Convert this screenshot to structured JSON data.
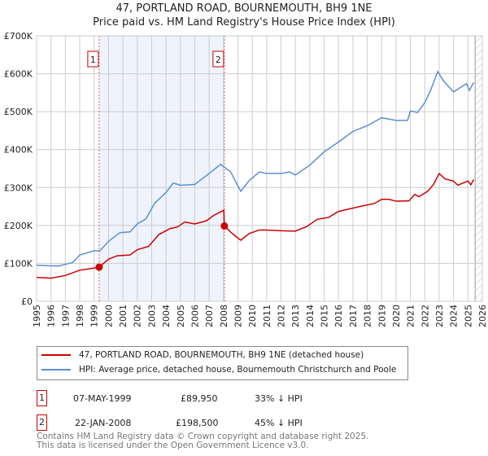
{
  "chart_data": {
    "type": "line",
    "title": "47, PORTLAND ROAD, BOURNEMOUTH, BH9 1NE",
    "subtitle": "Price paid vs. HM Land Registry's House Price Index (HPI)",
    "xlim": [
      1995,
      2026
    ],
    "ylim": [
      0,
      700000
    ],
    "yticks": [
      {
        "v": 0,
        "label": "£0"
      },
      {
        "v": 100000,
        "label": "£100K"
      },
      {
        "v": 200000,
        "label": "£200K"
      },
      {
        "v": 300000,
        "label": "£300K"
      },
      {
        "v": 400000,
        "label": "£400K"
      },
      {
        "v": 500000,
        "label": "£500K"
      },
      {
        "v": 600000,
        "label": "£600K"
      },
      {
        "v": 700000,
        "label": "£700K"
      }
    ],
    "xticks": [
      "1995",
      "1996",
      "1997",
      "1998",
      "1999",
      "2000",
      "2001",
      "2002",
      "2003",
      "2004",
      "2005",
      "2006",
      "2007",
      "2008",
      "2009",
      "2010",
      "2011",
      "2012",
      "2013",
      "2014",
      "2015",
      "2016",
      "2017",
      "2018",
      "2019",
      "2020",
      "2021",
      "2022",
      "2023",
      "2024",
      "2025",
      "2026"
    ],
    "grid": true,
    "shaded_range": [
      1999.35,
      2008.06
    ],
    "forecast_hatch_from": 2025.5,
    "series": [
      {
        "name": "47, PORTLAND ROAD, BOURNEMOUTH, BH9 1NE (detached house)",
        "color": "#cc0000",
        "points": [
          [
            1995,
            63
          ],
          [
            1996,
            61
          ],
          [
            1997,
            68
          ],
          [
            1998,
            82
          ],
          [
            1999,
            87.5
          ],
          [
            1999.35,
            89.95
          ],
          [
            2000,
            111
          ],
          [
            2000.6,
            120
          ],
          [
            2001.5,
            122
          ],
          [
            2002,
            136
          ],
          [
            2002.8,
            145
          ],
          [
            2003.5,
            176
          ],
          [
            2004.3,
            192
          ],
          [
            2004.8,
            196
          ],
          [
            2005.3,
            209
          ],
          [
            2006,
            204
          ],
          [
            2006.8,
            212
          ],
          [
            2007.3,
            226
          ],
          [
            2008.02,
            240
          ],
          [
            2008.06,
            198.5
          ],
          [
            2008.6,
            179
          ],
          [
            2009.2,
            161
          ],
          [
            2009.8,
            179
          ],
          [
            2010.5,
            188
          ],
          [
            2011,
            188
          ],
          [
            2012,
            186
          ],
          [
            2013,
            185
          ],
          [
            2013.8,
            197
          ],
          [
            2014.5,
            216
          ],
          [
            2015.3,
            221
          ],
          [
            2016,
            237
          ],
          [
            2016.8,
            244
          ],
          [
            2017.6,
            251
          ],
          [
            2018.5,
            258
          ],
          [
            2019,
            269
          ],
          [
            2019.5,
            269
          ],
          [
            2020,
            264
          ],
          [
            2020.9,
            265
          ],
          [
            2021.3,
            282
          ],
          [
            2021.6,
            276
          ],
          [
            2022.2,
            290
          ],
          [
            2022.6,
            308
          ],
          [
            2023,
            337
          ],
          [
            2023.4,
            323
          ],
          [
            2024,
            317
          ],
          [
            2024.3,
            306
          ],
          [
            2024.6,
            311
          ],
          [
            2025,
            317
          ],
          [
            2025.2,
            307
          ],
          [
            2025.4,
            321
          ]
        ]
      },
      {
        "name": "HPI: Average price, detached house, Bournemouth Christchurch and Poole",
        "color": "#5b8fd4",
        "points": [
          [
            1995,
            95
          ],
          [
            1996.5,
            93
          ],
          [
            1997.5,
            102
          ],
          [
            1998,
            122
          ],
          [
            1999,
            133
          ],
          [
            1999.4,
            133
          ],
          [
            2000,
            158
          ],
          [
            2000.8,
            181
          ],
          [
            2001.5,
            183
          ],
          [
            2002,
            204
          ],
          [
            2002.6,
            217
          ],
          [
            2003.2,
            258
          ],
          [
            2004,
            287
          ],
          [
            2004.5,
            312
          ],
          [
            2005,
            306
          ],
          [
            2006,
            308
          ],
          [
            2007,
            337
          ],
          [
            2007.8,
            361
          ],
          [
            2008.5,
            341
          ],
          [
            2009.2,
            290
          ],
          [
            2009.8,
            319
          ],
          [
            2010.5,
            341
          ],
          [
            2011,
            337
          ],
          [
            2012,
            337
          ],
          [
            2012.6,
            341
          ],
          [
            2013,
            333
          ],
          [
            2014,
            359
          ],
          [
            2015,
            394
          ],
          [
            2016,
            420
          ],
          [
            2017,
            448
          ],
          [
            2018,
            463
          ],
          [
            2019,
            484
          ],
          [
            2020,
            477
          ],
          [
            2020.8,
            477
          ],
          [
            2021,
            502
          ],
          [
            2021.5,
            498
          ],
          [
            2022,
            524
          ],
          [
            2022.4,
            556
          ],
          [
            2022.9,
            606
          ],
          [
            2023.3,
            581
          ],
          [
            2024,
            552
          ],
          [
            2024.4,
            562
          ],
          [
            2024.9,
            574
          ],
          [
            2025.1,
            556
          ],
          [
            2025.4,
            577
          ]
        ]
      }
    ],
    "sales": [
      {
        "label": "1",
        "x": 1999.35,
        "y": 89950
      },
      {
        "label": "2",
        "x": 2008.06,
        "y": 198500
      }
    ]
  },
  "legend": {
    "property": "47, PORTLAND ROAD, BOURNEMOUTH, BH9 1NE (detached house)",
    "hpi": "HPI: Average price, detached house, Bournemouth Christchurch and Poole"
  },
  "sales_table": [
    {
      "num": "1",
      "date": "07-MAY-1999",
      "price": "£89,950",
      "hpi": "33% ↓ HPI"
    },
    {
      "num": "2",
      "date": "22-JAN-2008",
      "price": "£198,500",
      "hpi": "45% ↓ HPI"
    }
  ],
  "footer": {
    "line1": "Contains HM Land Registry data © Crown copyright and database right 2025.",
    "line2": "This data is licensed under the Open Government Licence v3.0."
  }
}
